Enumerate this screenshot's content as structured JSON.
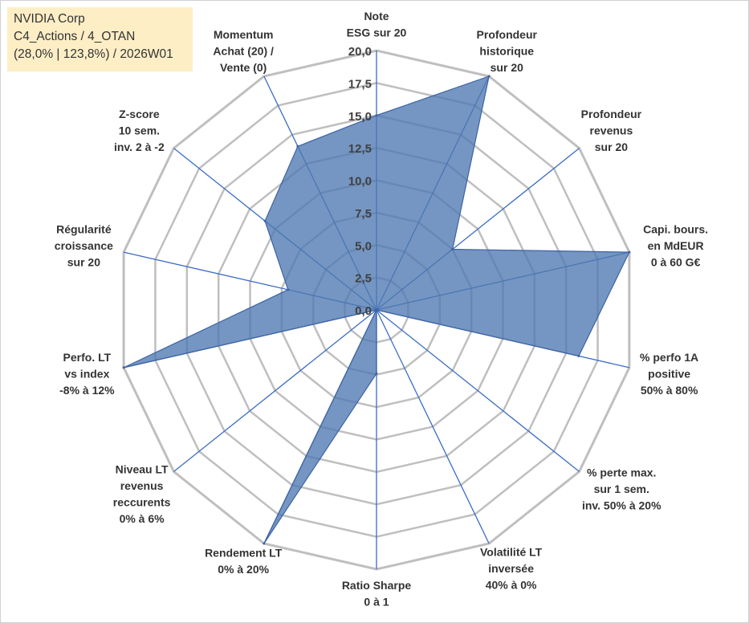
{
  "info_box": {
    "line1": "NVIDIA Corp",
    "line2": "C4_Actions / 4_OTAN",
    "line3": "(28,0% | 123,8%) / 2026W01"
  },
  "colors": {
    "fill": "#4e79b1",
    "stroke": "#3d63a3",
    "grid": "#bfbfbf",
    "spoke": "#3b6cc4",
    "info_bg": "#fdeec6"
  },
  "chart_data": {
    "type": "radar",
    "title": "",
    "rmin": 0,
    "rmax": 20,
    "ticks": [
      "0,0",
      "2,5",
      "5,0",
      "7,5",
      "10,0",
      "12,5",
      "15,0",
      "17,5",
      "20,0"
    ],
    "axes": [
      {
        "label": [
          "Note",
          "ESG sur 20"
        ],
        "value": 15.0
      },
      {
        "label": [
          "Profondeur",
          "historique",
          "sur 20"
        ],
        "value": 20.0
      },
      {
        "label": [
          "Profondeur",
          "revenus",
          "sur 20"
        ],
        "value": 7.5
      },
      {
        "label": [
          "Capi. bours.",
          "en MdEUR",
          "0 à 60 G€"
        ],
        "value": 20.0
      },
      {
        "label": [
          "% perfo 1A",
          "positive",
          "50% à 80%"
        ],
        "value": 16.0
      },
      {
        "label": [
          "% perte max.",
          "sur 1 sem.",
          "inv. 50% à 20%"
        ],
        "value": 0.0
      },
      {
        "label": [
          "Volatilité LT",
          "inversée",
          "40% à 0%"
        ],
        "value": 0.0
      },
      {
        "label": [
          "Ratio Sharpe",
          "0 à 1"
        ],
        "value": 4.9
      },
      {
        "label": [
          "Rendement LT",
          "0% à 20%"
        ],
        "value": 20.0
      },
      {
        "label": [
          "Niveau LT",
          "revenus",
          "reccurents",
          "0% à 6%"
        ],
        "value": 0.0
      },
      {
        "label": [
          "Perfo. LT",
          "vs index",
          "-8% à 12%"
        ],
        "value": 20.0
      },
      {
        "label": [
          "Régularité",
          "croissance",
          "sur 20"
        ],
        "value": 7.0
      },
      {
        "label": [
          "Z-score",
          "10 sem.",
          "inv. 2 à -2"
        ],
        "value": 11.0
      },
      {
        "label": [
          "Momentum",
          "Achat (20) /",
          "Vente (0)"
        ],
        "value": 14.0
      }
    ]
  }
}
